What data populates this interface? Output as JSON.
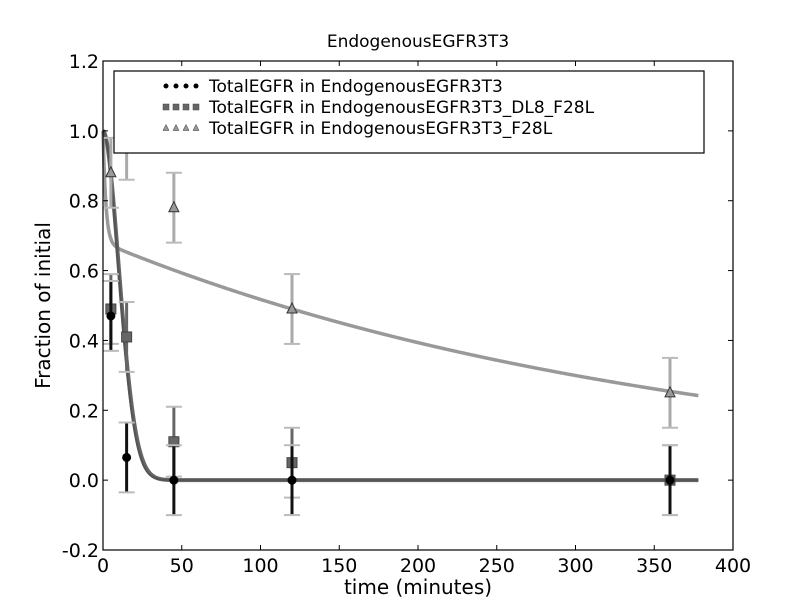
{
  "chart_data": {
    "type": "scatter",
    "title": "EndogenousEGFR3T3",
    "xlabel": "time (minutes)",
    "ylabel": "Fraction of initial",
    "xlim": [
      0,
      400
    ],
    "ylim": [
      -0.2,
      1.2
    ],
    "xticks": [
      0,
      50,
      100,
      150,
      200,
      250,
      300,
      350,
      400
    ],
    "xtick_labels": [
      "0",
      "50",
      "100",
      "150",
      "200",
      "250",
      "300",
      "350",
      "400"
    ],
    "yticks": [
      -0.2,
      0.0,
      0.2,
      0.4,
      0.6,
      0.8,
      1.0,
      1.2
    ],
    "ytick_labels": [
      "-0.2",
      "0.0",
      "0.2",
      "0.4",
      "0.6",
      "0.8",
      "1.0",
      "1.2"
    ],
    "grid": false,
    "legend_position": "upper center",
    "series": [
      {
        "name": "TotalEGFR in EndogenousEGFR3T3",
        "marker": "circle",
        "color": "#000000",
        "x": [
          5,
          15,
          45,
          120,
          360
        ],
        "y": [
          0.47,
          0.065,
          0.0,
          0.0,
          0.0
        ],
        "yerr": [
          0.1,
          0.1,
          0.1,
          0.1,
          0.1
        ],
        "fit_color": "#555555"
      },
      {
        "name": "TotalEGFR in EndogenousEGFR3T3_DL8_F28L",
        "marker": "square",
        "color": "#666666",
        "x": [
          5,
          15,
          45,
          120,
          360
        ],
        "y": [
          0.49,
          0.41,
          0.11,
          0.05,
          0.0
        ],
        "yerr": [
          0.1,
          0.1,
          0.1,
          0.1,
          0.1
        ],
        "fit_color": "#666666"
      },
      {
        "name": "TotalEGFR in EndogenousEGFR3T3_F28L",
        "marker": "triangle",
        "color": "#999999",
        "x": [
          5,
          15,
          45,
          120,
          360
        ],
        "y": [
          0.88,
          0.96,
          0.78,
          0.49,
          0.25
        ],
        "yerr": [
          0.1,
          0.1,
          0.1,
          0.1,
          0.1
        ],
        "fit_color": "#999999"
      }
    ],
    "fit_curves": [
      {
        "series": "TotalEGFR in EndogenousEGFR3T3_F28L",
        "description": "fast drop from 1.0 to ~0.68 then slow decay to ~0.24 at t=380"
      },
      {
        "series": "TotalEGFR in EndogenousEGFR3T3 / DL8_F28L",
        "description": "fast exponential decay from 1.0 to 0 by t~40"
      }
    ]
  }
}
